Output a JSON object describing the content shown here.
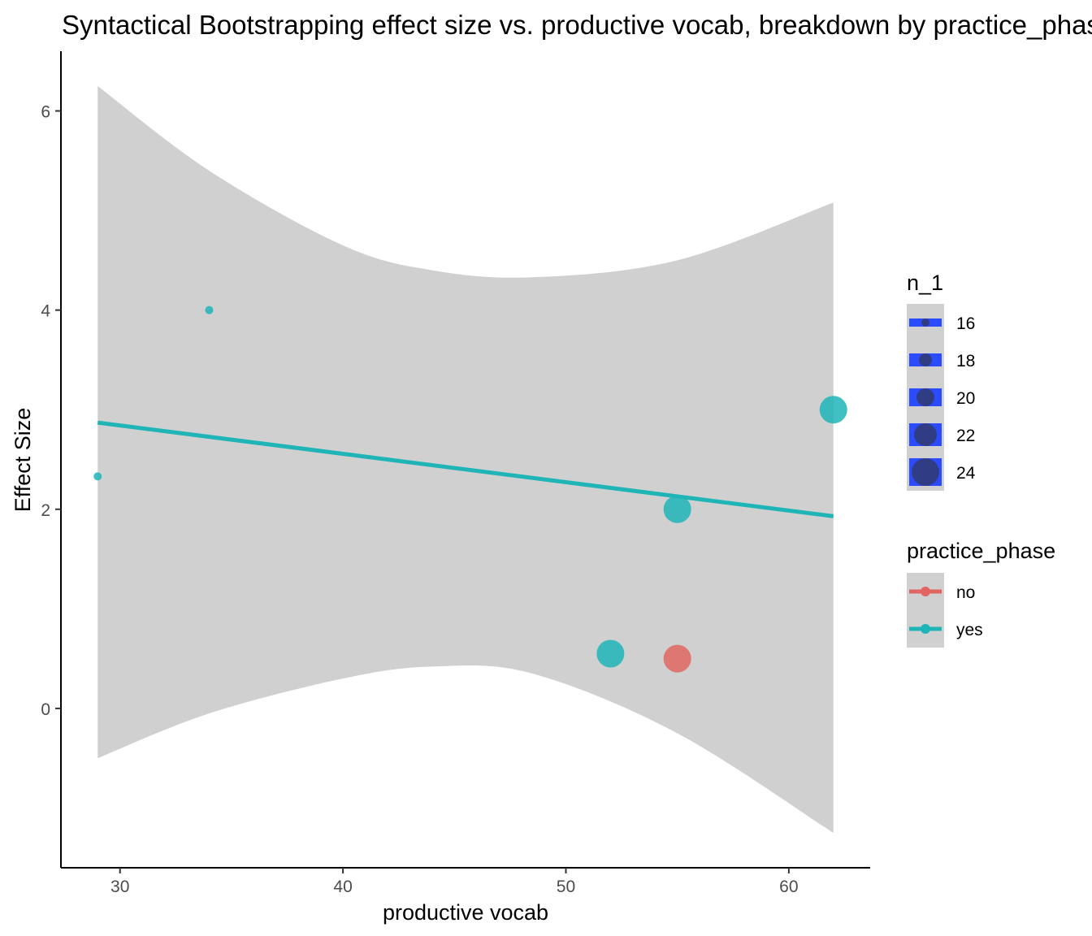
{
  "chart_data": {
    "type": "scatter",
    "title": "Syntactical Bootstrapping effect size vs. productive vocab, breakdown by practice_phase",
    "xlabel": "productive vocab",
    "ylabel": "Effect Size",
    "xlim": [
      27.35,
      63.65
    ],
    "ylim": [
      -1.6,
      6.6
    ],
    "x_ticks": [
      30,
      40,
      50,
      60
    ],
    "y_ticks": [
      0,
      2,
      4,
      6
    ],
    "grid": false,
    "points": [
      {
        "x": 29.0,
        "y": 2.33,
        "n_1": 16,
        "practice_phase": "yes"
      },
      {
        "x": 34.0,
        "y": 4.0,
        "n_1": 16,
        "practice_phase": "yes"
      },
      {
        "x": 52.0,
        "y": 0.55,
        "n_1": 24,
        "practice_phase": "yes"
      },
      {
        "x": 55.0,
        "y": 2.0,
        "n_1": 24,
        "practice_phase": "yes"
      },
      {
        "x": 55.0,
        "y": 0.5,
        "n_1": 24,
        "practice_phase": "no"
      },
      {
        "x": 62.0,
        "y": 3.0,
        "n_1": 24,
        "practice_phase": "yes"
      }
    ],
    "fit_line": {
      "series": "yes",
      "x": [
        29.0,
        62.0
      ],
      "y": [
        2.87,
        1.93
      ]
    },
    "confidence_band": {
      "x": [
        29.0,
        34.0,
        40.0,
        44.0,
        48.5,
        55.0,
        62.0
      ],
      "upper": [
        6.25,
        5.4,
        4.65,
        4.4,
        4.33,
        4.5,
        5.08
      ],
      "lower": [
        -0.5,
        -0.05,
        0.3,
        0.42,
        0.35,
        -0.25,
        -1.25
      ]
    },
    "legend": {
      "placement": "right",
      "size": {
        "title": "n_1",
        "values": [
          16,
          18,
          20,
          22,
          24
        ]
      },
      "color": {
        "title": "practice_phase",
        "entries": [
          {
            "label": "no",
            "color": "#e16661"
          },
          {
            "label": "yes",
            "color": "#1fb5b7"
          }
        ]
      }
    },
    "colors": {
      "no": "#e16661",
      "yes": "#1fb5b7",
      "band": "#d0d0d0",
      "size_legend_key": "#2b4bff"
    }
  }
}
